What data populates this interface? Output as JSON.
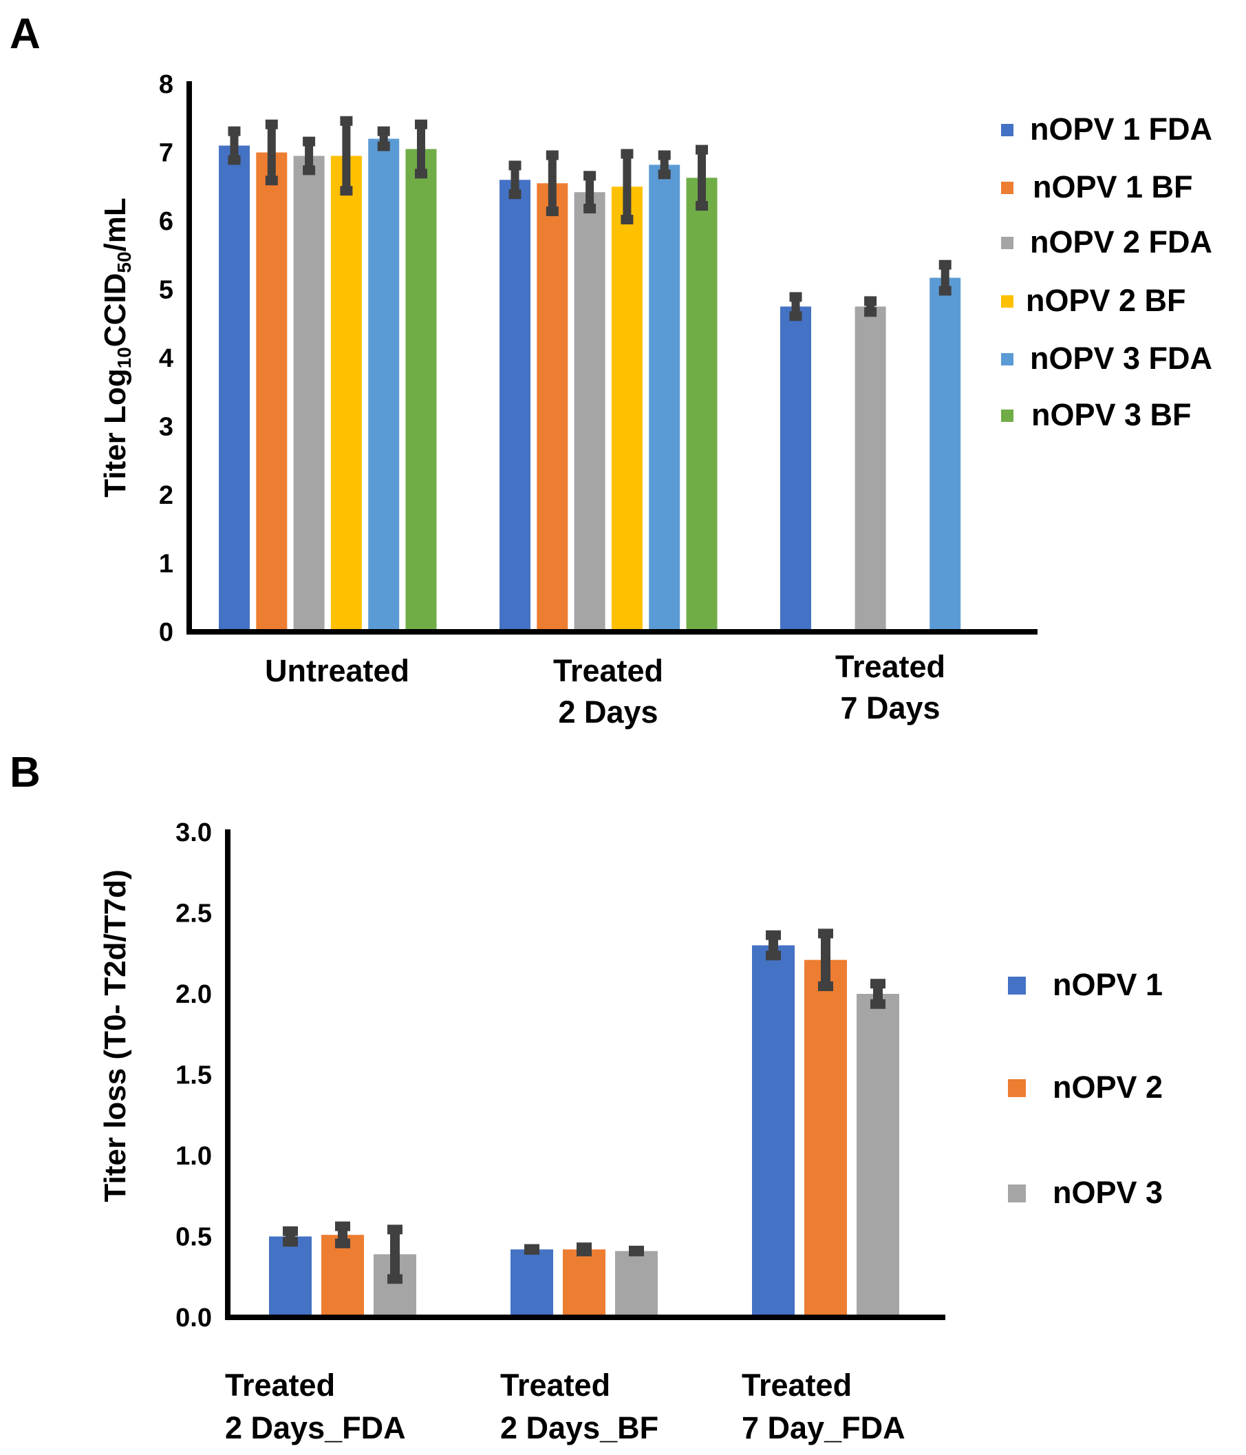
{
  "chart_data": [
    {
      "panel": "A",
      "type": "bar",
      "ylabel": "Titer Log10CCID50/mL",
      "ylabel_parts": {
        "pre": "Titer Log",
        "sub1": "10",
        "mid": "CCID",
        "sub2": "50",
        "post": "/mL"
      },
      "ylim": [
        0,
        8
      ],
      "yticks": [
        "0",
        "1",
        "2",
        "3",
        "4",
        "5",
        "6",
        "7",
        "8"
      ],
      "categories": [
        [
          "Untreated"
        ],
        [
          "Treated",
          "2 Days"
        ],
        [
          "Treated",
          "7 Days"
        ]
      ],
      "series": [
        {
          "name": "nOPV 1 FDA",
          "color": "#4472C4",
          "values": [
            7.1,
            6.6,
            4.75
          ],
          "errors": [
            0.25,
            0.25,
            0.18
          ]
        },
        {
          "name": "nOPV 1 BF",
          "color": "#ED7D31",
          "values": [
            7.0,
            6.55,
            null
          ],
          "errors": [
            0.45,
            0.45,
            null
          ]
        },
        {
          "name": "nOPV 2 FDA",
          "color": "#A5A5A5",
          "values": [
            6.95,
            6.42,
            4.75
          ],
          "errors": [
            0.25,
            0.28,
            0.12
          ]
        },
        {
          "name": "nOPV 2 BF",
          "color": "#FFC000",
          "values": [
            6.95,
            6.5,
            null
          ],
          "errors": [
            0.55,
            0.52,
            null
          ]
        },
        {
          "name": "nOPV 3 FDA",
          "color": "#5B9BD5",
          "values": [
            7.2,
            6.82,
            5.17
          ],
          "errors": [
            0.15,
            0.18,
            0.23
          ]
        },
        {
          "name": "nOPV 3 BF",
          "color": "#70AD47",
          "values": [
            7.05,
            6.63,
            null
          ],
          "errors": [
            0.4,
            0.45,
            null
          ]
        }
      ]
    },
    {
      "panel": "B",
      "type": "bar",
      "ylabel": "Titer loss (T0- T2d/T7d)",
      "ylim": [
        0,
        3.0
      ],
      "yticks": [
        "0.0",
        "0.5",
        "1.0",
        "1.5",
        "2.0",
        "2.5",
        "3.0"
      ],
      "categories": [
        [
          "Treated",
          "2 Days_FDA"
        ],
        [
          "Treated",
          "2 Days_BF"
        ],
        [
          "Treated",
          "7 Day_FDA"
        ]
      ],
      "series": [
        {
          "name": "nOPV 1",
          "color": "#4472C4",
          "values": [
            0.5,
            0.42,
            2.3
          ],
          "errors": [
            0.05,
            0.02,
            0.08
          ]
        },
        {
          "name": "nOPV 2",
          "color": "#ED7D31",
          "values": [
            0.51,
            0.42,
            2.21
          ],
          "errors": [
            0.07,
            0.03,
            0.18
          ]
        },
        {
          "name": "nOPV 3",
          "color": "#A5A5A5",
          "values": [
            0.39,
            0.41,
            2.0
          ],
          "errors": [
            0.17,
            0.02,
            0.08
          ]
        }
      ]
    }
  ]
}
